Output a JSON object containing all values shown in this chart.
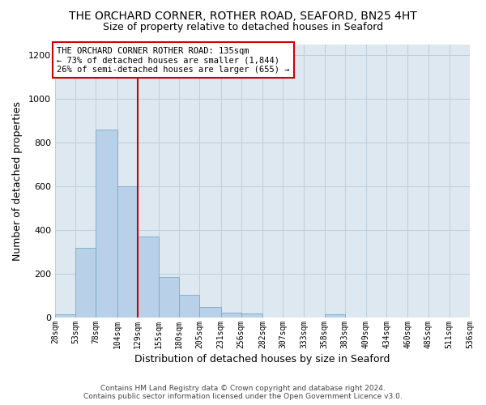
{
  "title": "THE ORCHARD CORNER, ROTHER ROAD, SEAFORD, BN25 4HT",
  "subtitle": "Size of property relative to detached houses in Seaford",
  "xlabel": "Distribution of detached houses by size in Seaford",
  "ylabel": "Number of detached properties",
  "bar_color": "#b8d0e8",
  "bar_edge_color": "#7aaac8",
  "background_color": "#ffffff",
  "plot_bg_color": "#dde8f0",
  "grid_color": "#bfcfdc",
  "vline_x": 129,
  "vline_color": "#cc0000",
  "bin_edges": [
    28,
    53,
    78,
    104,
    129,
    155,
    180,
    205,
    231,
    256,
    282,
    307,
    333,
    358,
    383,
    409,
    434,
    460,
    485,
    511,
    536
  ],
  "bar_heights": [
    15,
    320,
    860,
    600,
    370,
    185,
    105,
    48,
    22,
    18,
    0,
    0,
    0,
    14,
    0,
    0,
    0,
    0,
    0,
    0
  ],
  "ylim": [
    0,
    1250
  ],
  "yticks": [
    0,
    200,
    400,
    600,
    800,
    1000,
    1200
  ],
  "annotation_title": "THE ORCHARD CORNER ROTHER ROAD: 135sqm",
  "annotation_line1": "← 73% of detached houses are smaller (1,844)",
  "annotation_line2": "26% of semi-detached houses are larger (655) →",
  "footer1": "Contains HM Land Registry data © Crown copyright and database right 2024.",
  "footer2": "Contains public sector information licensed under the Open Government Licence v3.0."
}
